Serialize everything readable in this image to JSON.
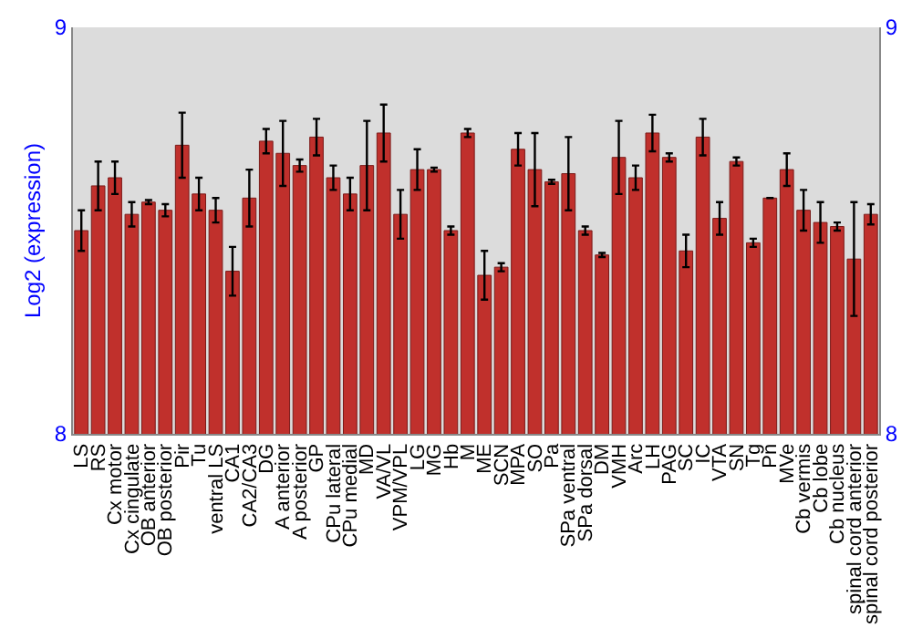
{
  "chart_data": {
    "type": "bar",
    "ylabel": "Log2 (expression)",
    "categories": [
      "LS",
      "RS",
      "Cx motor",
      "Cx cingulate",
      "OB anterior",
      "OB posterior",
      "Pir",
      "Tu",
      "ventral LS",
      "CA1",
      "CA2/CA3",
      "DG",
      "A anterior",
      "A posterior",
      "GP",
      "CPu lateral",
      "CPu medial",
      "MD",
      "VA/VL",
      "VPM/VPL",
      "LG",
      "MG",
      "Hb",
      "M",
      "ME",
      "SCN",
      "MPA",
      "SO",
      "Pa",
      "SPa ventral",
      "SPa dorsal",
      "DM",
      "VMH",
      "Arc",
      "LH",
      "PAG",
      "SC",
      "IC",
      "VTA",
      "SN",
      "Tg",
      "Pn",
      "MVe",
      "Cb vermis",
      "Cb lobe",
      "Cb nucleus",
      "spinal cord anterior",
      "spinal cord posterior"
    ],
    "values": [
      8.5,
      8.61,
      8.63,
      8.54,
      8.57,
      8.55,
      8.71,
      8.59,
      8.55,
      8.4,
      8.58,
      8.72,
      8.69,
      8.66,
      8.73,
      8.63,
      8.59,
      8.66,
      8.74,
      8.54,
      8.65,
      8.65,
      8.5,
      8.74,
      8.39,
      8.41,
      8.7,
      8.65,
      8.62,
      8.64,
      8.5,
      8.44,
      8.68,
      8.63,
      8.74,
      8.68,
      8.45,
      8.73,
      8.53,
      8.67,
      8.47,
      8.58,
      8.65,
      8.55,
      8.52,
      8.51,
      8.43,
      8.54
    ],
    "errors": [
      0.05,
      0.06,
      0.04,
      0.03,
      0.005,
      0.015,
      0.08,
      0.04,
      0.03,
      0.06,
      0.07,
      0.03,
      0.08,
      0.015,
      0.045,
      0.03,
      0.04,
      0.11,
      0.07,
      0.06,
      0.05,
      0.005,
      0.01,
      0.01,
      0.06,
      0.01,
      0.04,
      0.09,
      0.005,
      0.09,
      0.01,
      0.005,
      0.09,
      0.03,
      0.045,
      0.01,
      0.04,
      0.045,
      0.04,
      0.01,
      0.01,
      null,
      0.04,
      0.05,
      0.05,
      0.01,
      0.14,
      0.025
    ],
    "color": "#c0302c",
    "ylim": [
      8,
      9
    ],
    "yticks": [
      8,
      9
    ],
    "y2lim": [
      8,
      9
    ],
    "y2ticks": [
      8,
      9
    ],
    "grid": false
  }
}
